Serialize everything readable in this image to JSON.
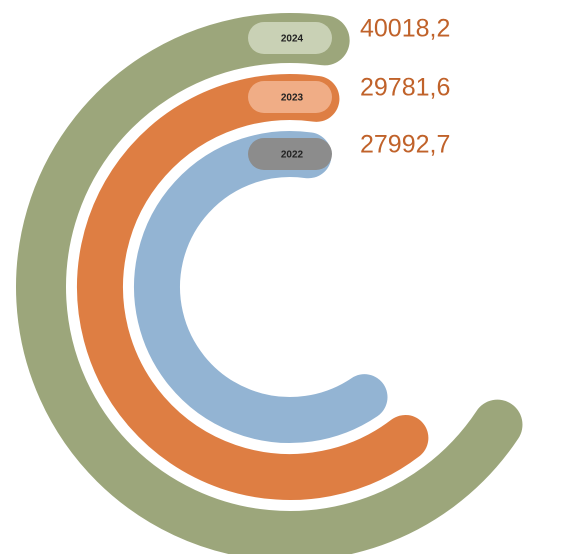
{
  "chart_data": {
    "type": "radial-bar",
    "series": [
      {
        "name": "2024",
        "color": "#9ca67b",
        "values": [
          40018.2
        ],
        "value_labels": [
          "40018,2"
        ]
      },
      {
        "name": "2023",
        "color": "#de7e43",
        "values": [
          29781.6
        ],
        "value_labels": [
          "29781,6"
        ]
      },
      {
        "name": "2022",
        "color": "#93b4d3",
        "values": [
          27992.7
        ],
        "value_labels": [
          "27992,7"
        ]
      }
    ]
  }
}
